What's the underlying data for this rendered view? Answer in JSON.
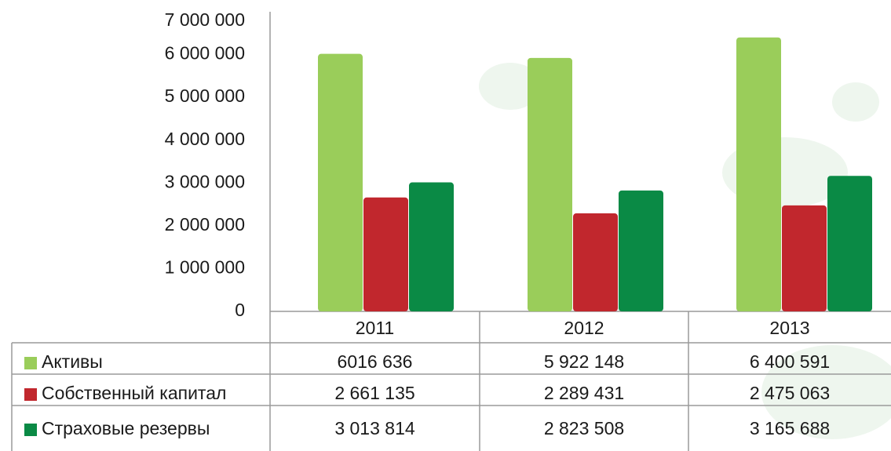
{
  "chart_data": {
    "type": "bar",
    "categories": [
      "2011",
      "2012",
      "2013"
    ],
    "series": [
      {
        "name": "Активы",
        "color": "#9acd5a",
        "values": [
          6016636,
          5922148,
          6400591
        ],
        "value_labels": [
          "6016 636",
          "5 922 148",
          "6 400 591"
        ]
      },
      {
        "name": "Собственный капитал",
        "color": "#c1272d",
        "values": [
          2661135,
          2289431,
          2475063
        ],
        "value_labels": [
          "2 661 135",
          "2 289 431",
          "2 475 063"
        ]
      },
      {
        "name": "Страховые резервы",
        "color": "#0a8a45",
        "values": [
          3013814,
          2823508,
          3165688
        ],
        "value_labels": [
          "3 013 814",
          "2 823 508",
          "3 165 688"
        ]
      }
    ],
    "ylim": [
      0,
      7000000
    ],
    "yticks": [
      0,
      {
        "value": 1000000,
        "label": "1 000 000"
      },
      {
        "value": 2000000,
        "label": "2 000 000"
      },
      {
        "value": 3000000,
        "label": "3 000 000"
      },
      {
        "value": 4000000,
        "label": "4 000 000"
      },
      {
        "value": 5000000,
        "label": "5 000 000"
      },
      {
        "value": 6000000,
        "label": "6 000 000"
      },
      {
        "value": 7000000,
        "label": "7 000 000"
      }
    ],
    "grid": false
  }
}
